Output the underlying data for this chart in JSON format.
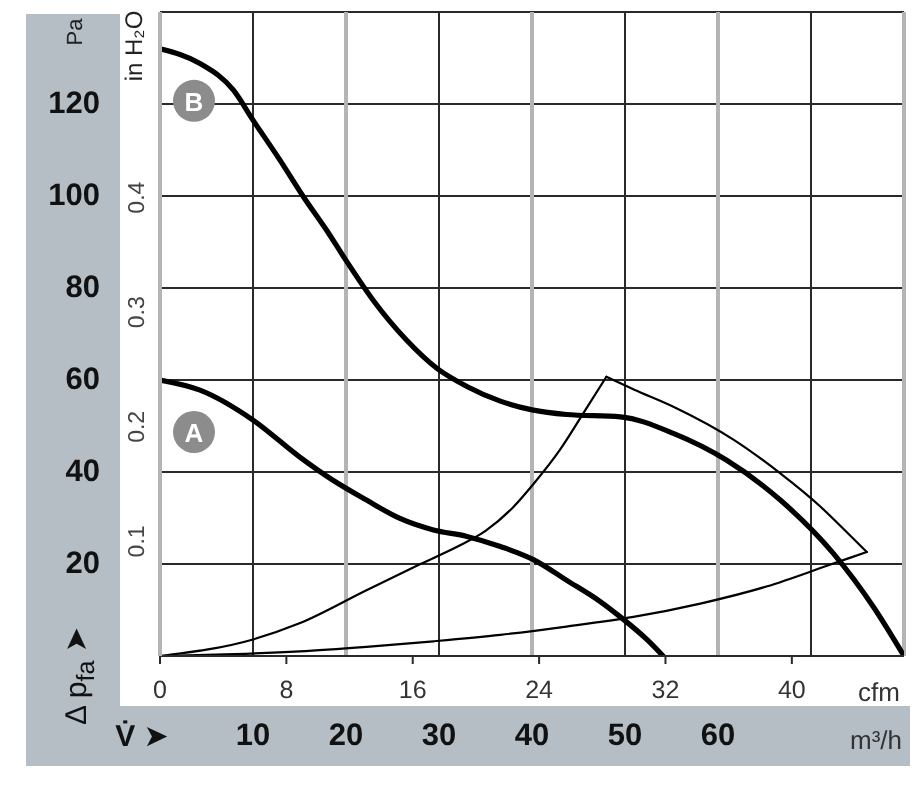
{
  "chart_data": {
    "type": "line",
    "xlabel": "m³/h",
    "x2label": "cfm",
    "ylabel": "Pa",
    "y2label": "in H₂O",
    "annotations": [
      "V̇ ➤",
      "Δ p$_{fa}$ ➤"
    ],
    "xlim": [
      0,
      80
    ],
    "xticks": [
      {
        "value": 0,
        "label": null
      },
      10,
      20,
      30,
      40,
      50,
      60,
      {
        "value": 70,
        "label": null
      },
      {
        "value": 80,
        "label": null
      }
    ],
    "x2lim": [
      0,
      47.1
    ],
    "x2ticks": [
      0,
      8,
      16,
      24,
      32,
      40
    ],
    "ylim": [
      0,
      140
    ],
    "yticks": [
      {
        "value": 0,
        "label": null
      },
      20,
      40,
      60,
      80,
      100,
      120,
      {
        "value": 140,
        "label": null
      }
    ],
    "y2lim": [
      0,
      0.562
    ],
    "y2ticks": [
      0.1,
      0.2,
      0.3,
      0.4
    ],
    "grid": true,
    "series": [
      {
        "name": "B",
        "color": "#000000",
        "x": [
          0,
          4.3,
          7.9,
          10,
          12.9,
          15.4,
          17.9,
          20,
          22.9,
          26.5,
          29.8,
          33,
          36.6,
          40,
          43.7,
          49.5,
          55.2,
          60.9,
          66.7,
          72.4,
          76.7,
          80
        ],
        "values": [
          132,
          128.8,
          123,
          116.5,
          107.8,
          99.9,
          92.6,
          86,
          77.4,
          68.7,
          62.5,
          58.6,
          55.4,
          53.5,
          52.5,
          52,
          48.4,
          42.6,
          33.9,
          22.3,
          10.7,
          0
        ]
      },
      {
        "name": "A",
        "color": "#000000",
        "x": [
          0,
          4.3,
          10,
          15,
          18.6,
          22.2,
          25.8,
          29.4,
          33,
          36.6,
          40.2,
          43.7,
          47.3,
          49.5,
          52.4,
          54.1
        ],
        "values": [
          60,
          57.8,
          51.3,
          43.3,
          38.2,
          33.9,
          29.9,
          27.4,
          26,
          23.8,
          20.9,
          16.5,
          11.9,
          8.5,
          3.5,
          0
        ]
      },
      {
        "color": "#000000",
        "x": [
          0,
          10,
          15,
          22.2,
          28,
          32,
          35,
          38,
          40.2,
          43,
          45.9,
          48
        ],
        "values": [
          0,
          3.6,
          7.1,
          14.3,
          20,
          23.8,
          27.2,
          32.4,
          37.5,
          44.8,
          54,
          60.7
        ]
      },
      {
        "color": "#000000",
        "x": [
          48,
          51,
          55.2,
          61.7,
          66.7,
          71,
          73.8,
          76
        ],
        "values": [
          60.7,
          57.9,
          54.2,
          47,
          39.7,
          32.5,
          27,
          22.6
        ]
      },
      {
        "color": "#000000",
        "x": [
          0,
          8,
          15,
          22.2,
          29.4,
          36.6,
          43.7,
          50.9,
          58.1,
          65.2,
          72.4,
          76
        ],
        "values": [
          0,
          0.4,
          1,
          2,
          3.2,
          4.6,
          6.4,
          8.5,
          11.4,
          15.1,
          20.1,
          22.6
        ]
      }
    ]
  }
}
